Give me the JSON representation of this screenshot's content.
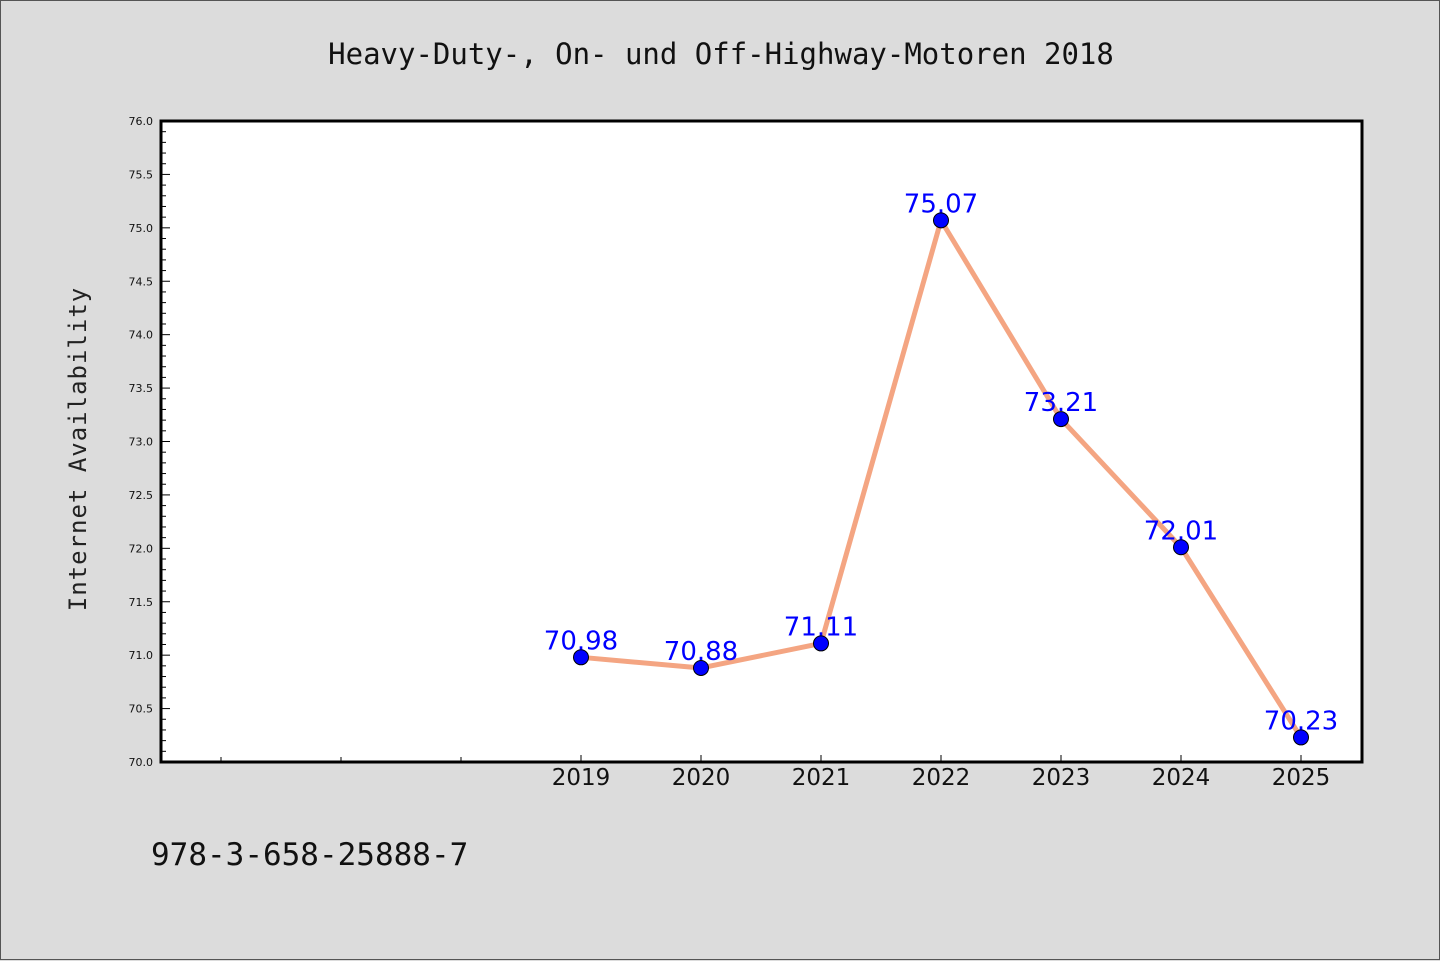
{
  "footer": {
    "isbn": "978-3-658-25888-7"
  },
  "colors": {
    "background": "#dcdcdc",
    "plot_background": "#ffffff",
    "line": "#f4a582",
    "marker": "#0000ff",
    "data_label": "#0000ff"
  },
  "chart_data": {
    "type": "line",
    "title": "Heavy-Duty-, On- und Off-Highway-Motoren 2018",
    "xlabel": "",
    "ylabel": "Internet Availability",
    "categories": [
      "2019",
      "2020",
      "2021",
      "2022",
      "2023",
      "2024",
      "2025"
    ],
    "values": [
      70.98,
      70.88,
      71.11,
      75.07,
      73.21,
      72.01,
      70.23
    ],
    "data_labels": [
      "70.98",
      "70.88",
      "71.11",
      "75.07",
      "73.21",
      "72.01",
      "70.23"
    ],
    "ylim": [
      70.0,
      76.0
    ],
    "yticks": [
      "70.0",
      "70.5",
      "71.0",
      "71.5",
      "72.0",
      "72.5",
      "73.0",
      "73.5",
      "74.0",
      "74.5",
      "75.0",
      "75.5",
      "76.0"
    ],
    "grid": false,
    "legend": "none"
  }
}
